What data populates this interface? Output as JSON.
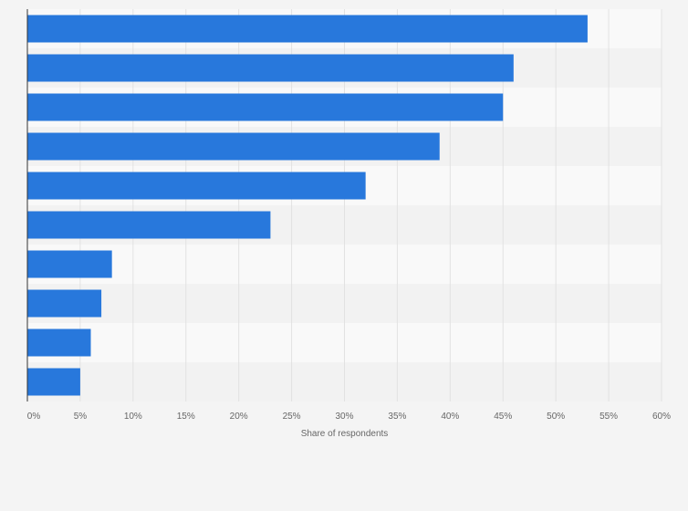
{
  "chart_data": {
    "type": "bar",
    "orientation": "horizontal",
    "title": "",
    "xlabel": "Share of respondents",
    "ylabel": "",
    "categories": [
      "",
      "",
      "",
      "",
      "",
      "",
      "",
      "",
      "",
      ""
    ],
    "values": [
      53,
      46,
      45,
      39,
      32,
      23,
      8,
      7,
      6,
      5
    ],
    "unit": "%",
    "xlim": [
      0,
      60
    ],
    "ticks": [
      0,
      5,
      10,
      15,
      20,
      25,
      30,
      35,
      40,
      45,
      50,
      55,
      60
    ],
    "tick_labels": [
      "0%",
      "5%",
      "10%",
      "15%",
      "20%",
      "25%",
      "30%",
      "35%",
      "40%",
      "45%",
      "50%",
      "55%",
      "60%"
    ],
    "grid": true,
    "legend": "none",
    "colors": {
      "bar": "#2878dc",
      "background": "#f4f4f4",
      "band_light": "#f9f9f9",
      "band_dark": "#f2f2f2",
      "grid": "#e2e2e2",
      "axis": "#333333",
      "text": "#666666"
    }
  }
}
